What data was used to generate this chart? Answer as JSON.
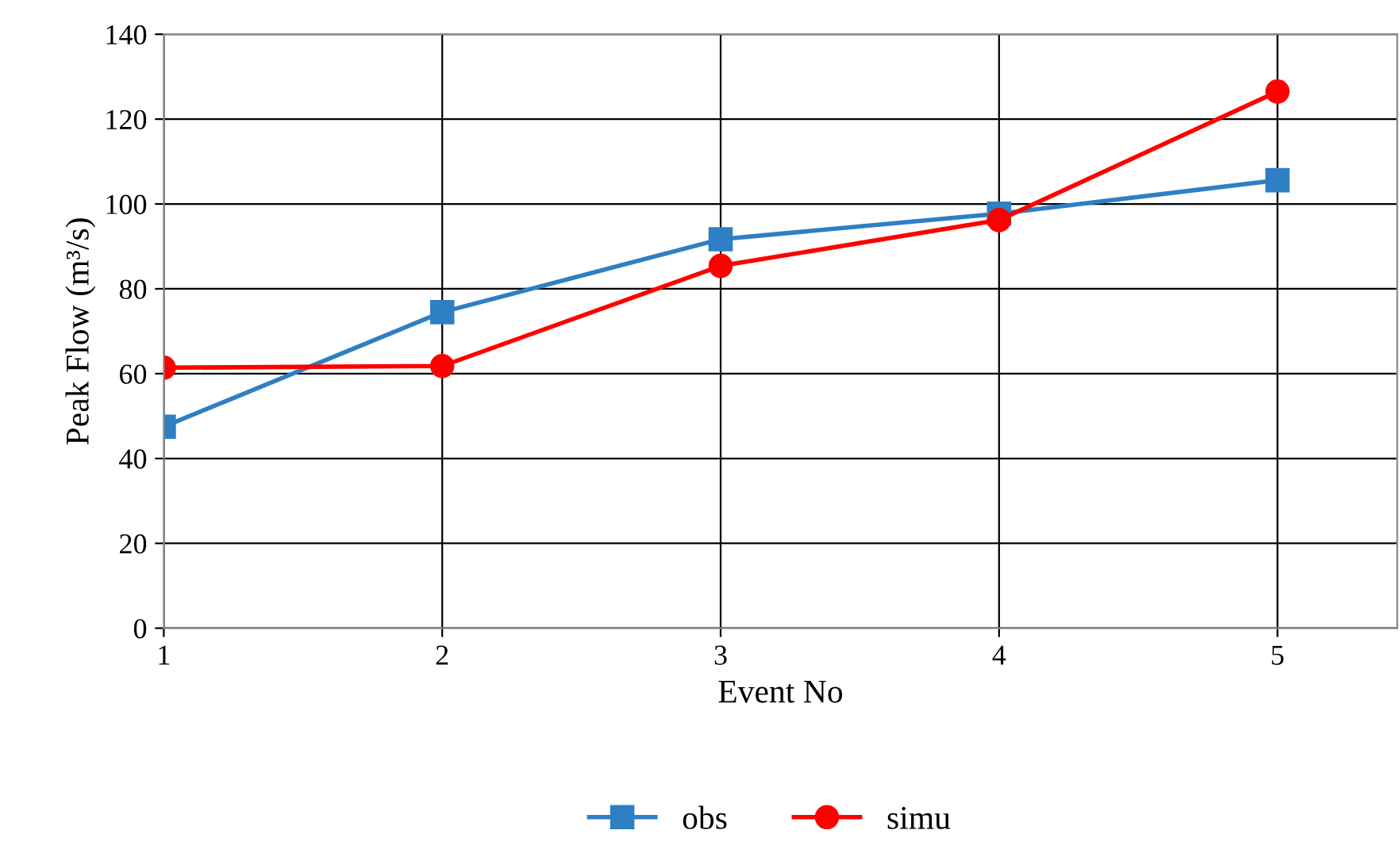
{
  "chart_data": {
    "type": "line",
    "xlabel": "Event No",
    "ylabel": "Peak Flow (m³/s)",
    "x": [
      1,
      2,
      3,
      4,
      5
    ],
    "xlim": [
      1,
      5.43
    ],
    "xticks": [
      1,
      2,
      3,
      4,
      5
    ],
    "ylim": [
      0,
      140
    ],
    "yticks": [
      0,
      20,
      40,
      60,
      80,
      100,
      120,
      140
    ],
    "grid": true,
    "legend": "bottom",
    "line_style": "solid",
    "series": [
      {
        "name": "obs",
        "color": "#2e7fc4",
        "marker": "square",
        "values": [
          47.5,
          74.5,
          91.7,
          97.7,
          105.6
        ]
      },
      {
        "name": "simu",
        "color": "#ff0000",
        "marker": "circle",
        "values": [
          61.4,
          61.8,
          85.4,
          96.2,
          126.5
        ]
      }
    ]
  }
}
